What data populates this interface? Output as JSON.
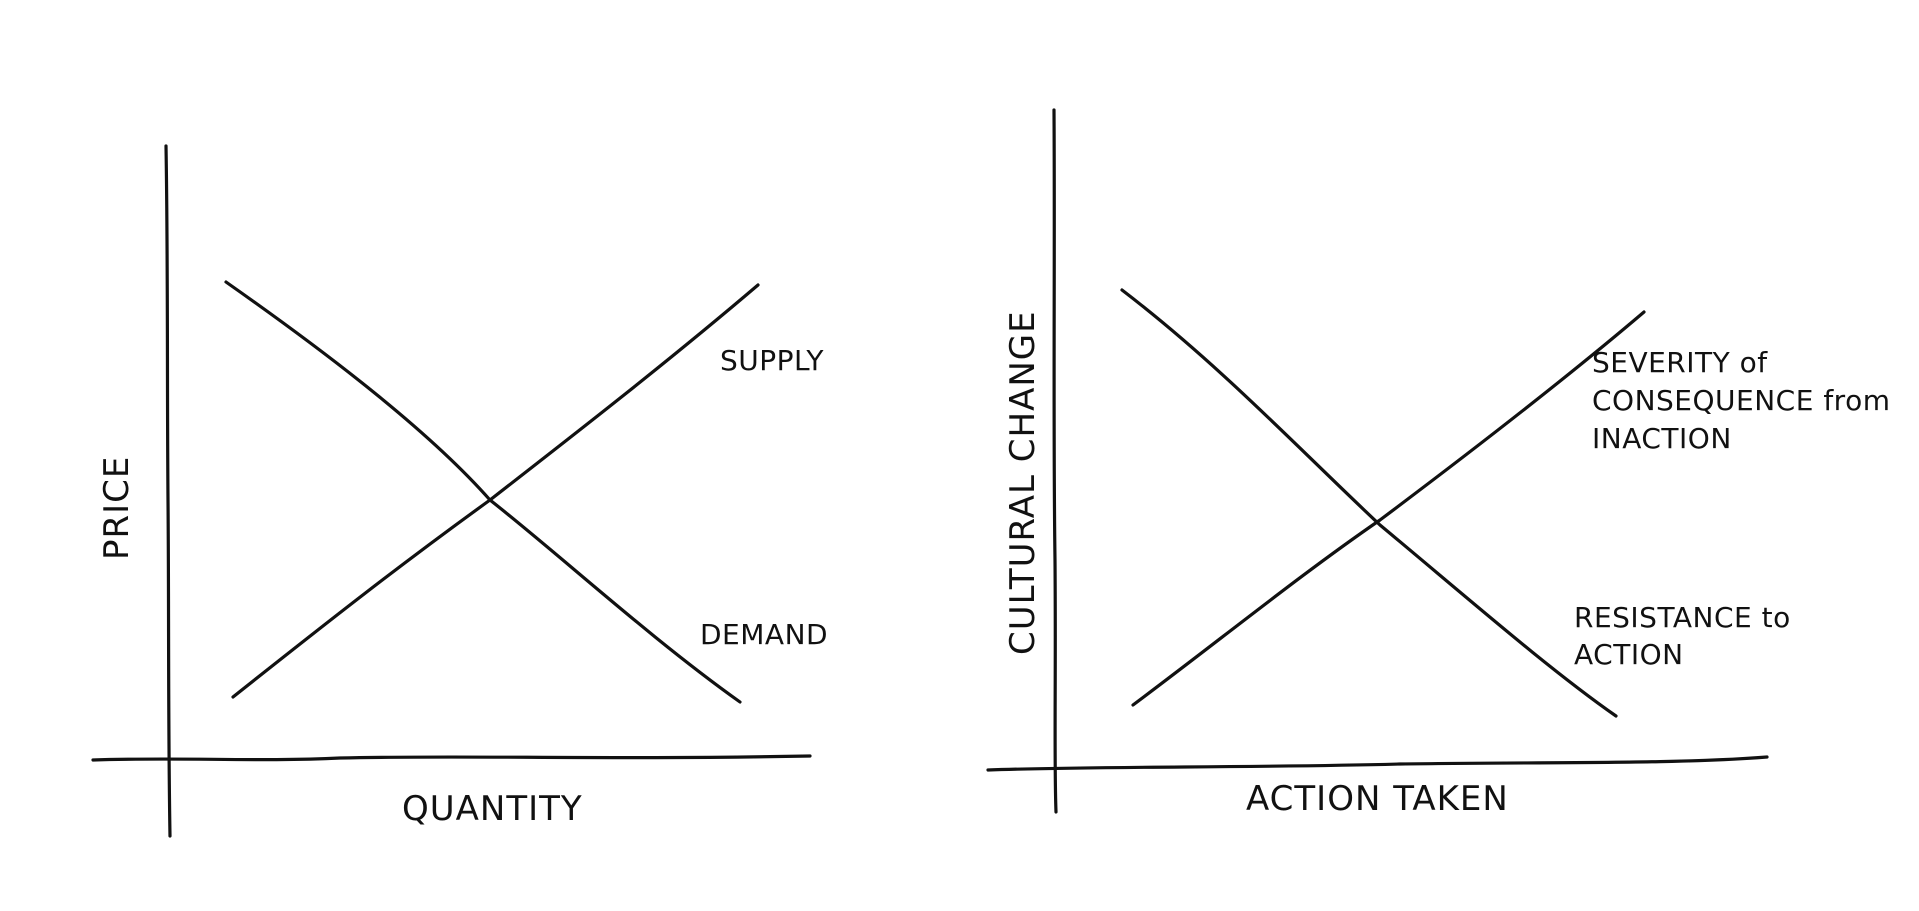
{
  "diagrams": [
    {
      "y_label": "PRICE",
      "x_label": "QUANTITY",
      "lines": [
        {
          "label": "SUPPLY"
        },
        {
          "label": "DEMAND"
        }
      ]
    },
    {
      "y_label": "CULTURAL CHANGE",
      "x_label": "ACTION TAKEN",
      "lines": [
        {
          "label": "SEVERITY of CONSEQUENCE from INACTION"
        },
        {
          "label": "RESISTANCE to ACTION"
        }
      ]
    }
  ]
}
